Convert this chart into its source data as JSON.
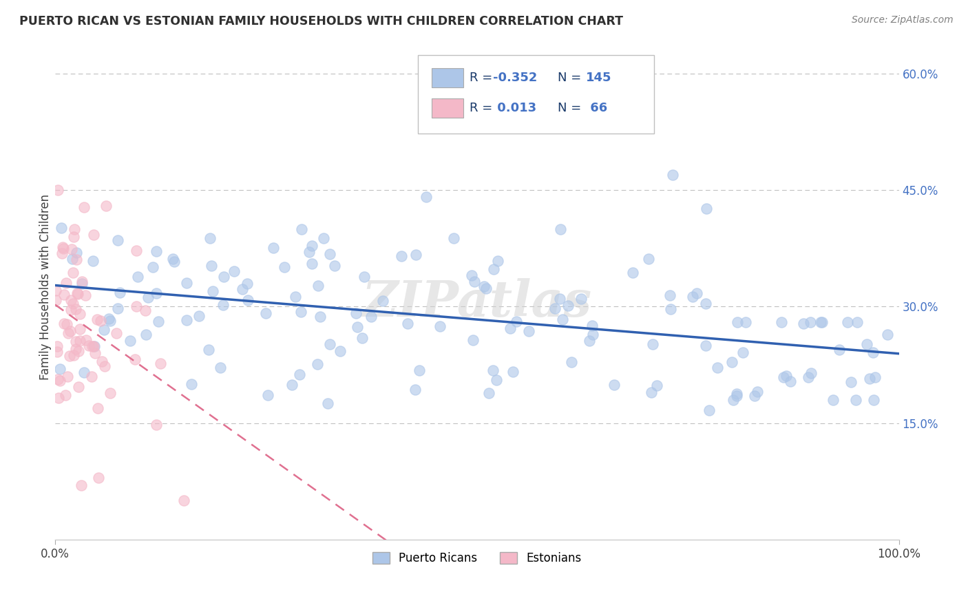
{
  "title": "PUERTO RICAN VS ESTONIAN FAMILY HOUSEHOLDS WITH CHILDREN CORRELATION CHART",
  "source_text": "Source: ZipAtlas.com",
  "ylabel": "Family Households with Children",
  "xlim": [
    0,
    100
  ],
  "ylim": [
    0,
    65
  ],
  "ytick_values": [
    15,
    30,
    45,
    60
  ],
  "pr_R": -0.352,
  "pr_N": 145,
  "pr_color": "#adc6e8",
  "pr_line_color": "#3060b0",
  "est_R": 0.013,
  "est_N": 66,
  "est_color": "#f4b8c8",
  "est_line_color": "#e07090",
  "background_color": "#ffffff",
  "grid_color": "#c0c0c0",
  "title_color": "#303030",
  "source_color": "#808080",
  "watermark": "ZIPatlas",
  "watermark_color": "#d0d0d0",
  "legend_R_color": "#1a3a6a",
  "legend_N_color": "#4472c4",
  "ytick_color": "#4472c4"
}
